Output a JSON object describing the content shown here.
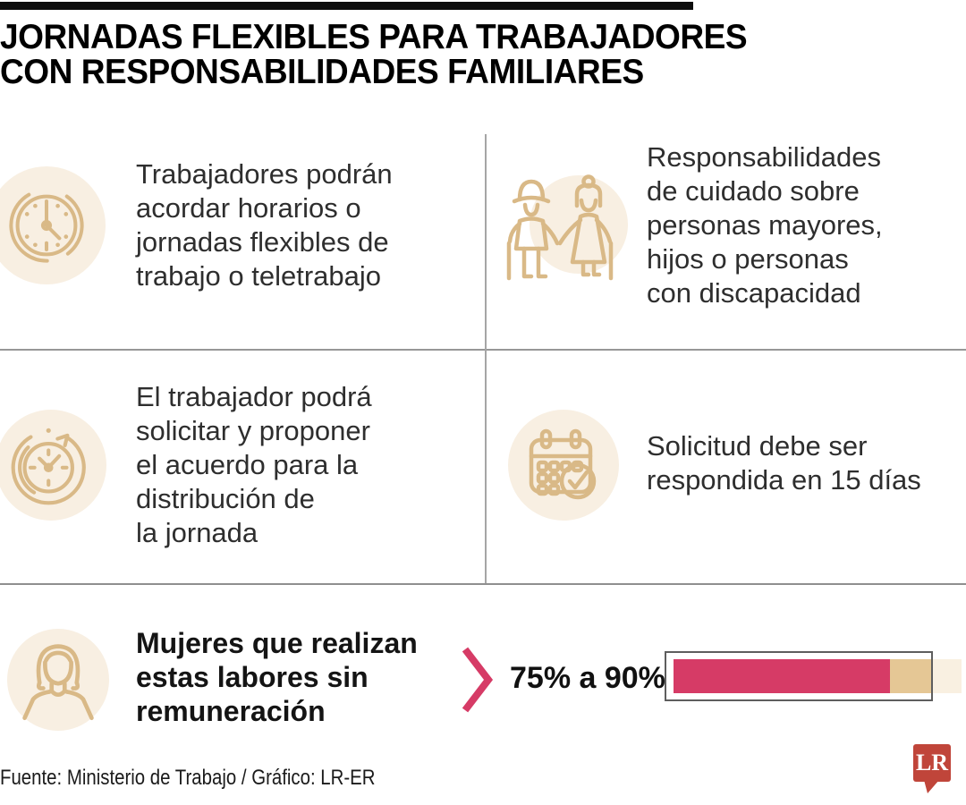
{
  "header": {
    "title": "JORNADAS FLEXIBLES PARA TRABAJADORES\nCON RESPONSABILIDADES FAMILIARES"
  },
  "cells": [
    {
      "icon": "clock-icon",
      "text": "Trabajadores podrán\nacordar horarios o\njornadas flexibles de\ntrabajo o teletrabajo"
    },
    {
      "icon": "elderly-couple-icon",
      "text": "Responsabilidades\nde cuidado sobre\npersonas mayores,\nhijos o personas\ncon discapacidad"
    },
    {
      "icon": "clock-arrow-icon",
      "text": "El trabajador podrá\nsolicitar y proponer\nel acuerdo para la\ndistribución de\nla jornada"
    },
    {
      "icon": "calendar-check-icon",
      "text": "Solicitud debe ser\nrespondida en 15 días"
    }
  ],
  "highlight": {
    "icon": "woman-icon",
    "chevron_icon": "chevron-right-icon",
    "label": "Mujeres que realizan\nestas labores sin\nremuneración",
    "range_label": "75% a 90%",
    "bar": {
      "min_pct": 75,
      "max_pct": 90,
      "fill_color": "#d63b66",
      "range_color": "#e5c795",
      "track_color": "#f9f0e1",
      "outline_color": "#5e5e5e"
    }
  },
  "chart_data": {
    "type": "bar",
    "title": "Mujeres que realizan estas labores sin remuneración",
    "categories": [
      "Mujeres que realizan estas labores sin remuneración"
    ],
    "values": [
      75
    ],
    "value_range": [
      75,
      90
    ],
    "xlim": [
      0,
      100
    ],
    "label": "75% a 90%"
  },
  "footer": {
    "source": "Fuente: Ministerio de Trabajo / Gráfico: LR-ER",
    "logo_text": "LR"
  },
  "colors": {
    "accent_pink": "#d63b66",
    "icon_tan": "#d9b987",
    "icon_bg": "#f8efe2",
    "bar_range_tan": "#e5c795",
    "logo_red": "#c0453a",
    "divider_gray": "#979797",
    "top_bar_black": "#0d0d0d"
  }
}
